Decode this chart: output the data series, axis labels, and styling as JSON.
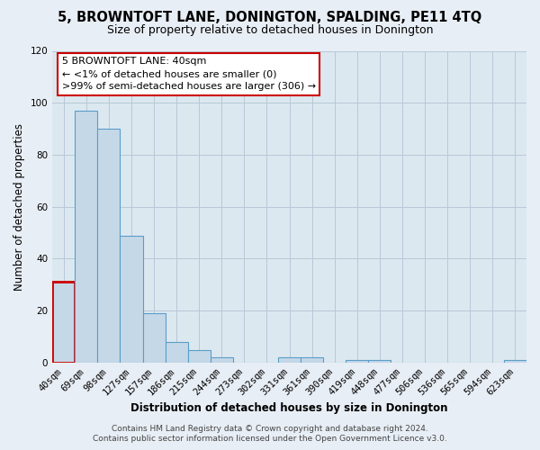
{
  "title": "5, BROWNTOFT LANE, DONINGTON, SPALDING, PE11 4TQ",
  "subtitle": "Size of property relative to detached houses in Donington",
  "xlabel": "Distribution of detached houses by size in Donington",
  "ylabel": "Number of detached properties",
  "bar_labels": [
    "40sqm",
    "69sqm",
    "98sqm",
    "127sqm",
    "157sqm",
    "186sqm",
    "215sqm",
    "244sqm",
    "273sqm",
    "302sqm",
    "331sqm",
    "361sqm",
    "390sqm",
    "419sqm",
    "448sqm",
    "477sqm",
    "506sqm",
    "536sqm",
    "565sqm",
    "594sqm",
    "623sqm"
  ],
  "bar_values": [
    31,
    97,
    90,
    49,
    19,
    8,
    5,
    2,
    0,
    0,
    2,
    2,
    0,
    1,
    1,
    0,
    0,
    0,
    0,
    0,
    1
  ],
  "bar_color": "#c5d8e8",
  "bar_edge_color": "#5a9ec9",
  "highlight_bar_index": 0,
  "highlight_bar_edge_color": "#cc0000",
  "ylim": [
    0,
    120
  ],
  "yticks": [
    0,
    20,
    40,
    60,
    80,
    100,
    120
  ],
  "annotation_box_text": "5 BROWNTOFT LANE: 40sqm\n← <1% of detached houses are smaller (0)\n>99% of semi-detached houses are larger (306) →",
  "annotation_box_color": "#ffffff",
  "annotation_box_edge_color": "#cc0000",
  "footer_line1": "Contains HM Land Registry data © Crown copyright and database right 2024.",
  "footer_line2": "Contains public sector information licensed under the Open Government Licence v3.0.",
  "background_color": "#e8eef5",
  "plot_bg_color": "#dce8f0",
  "title_fontsize": 10.5,
  "subtitle_fontsize": 9,
  "axis_label_fontsize": 8.5,
  "tick_fontsize": 7.5,
  "annotation_fontsize": 8,
  "footer_fontsize": 6.5
}
